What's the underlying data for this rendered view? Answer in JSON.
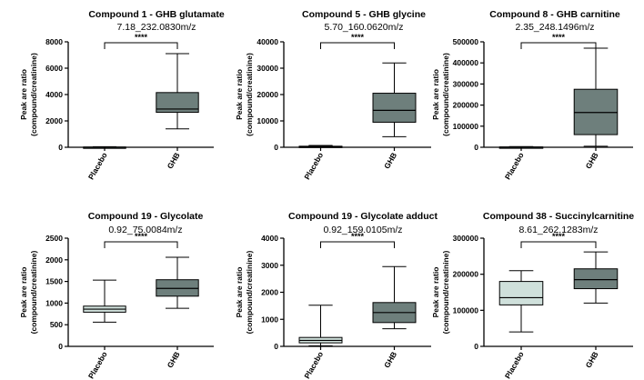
{
  "chart_data": [
    {
      "type": "box",
      "title": "Compound 1 - GHB glutamate",
      "subtitle": "7.18_232.0830m/z",
      "ylabel": "Peak are ratio\n(compound/creatinine)",
      "ylim": [
        0,
        8000
      ],
      "yticks": [
        "0",
        "2000",
        "4000",
        "6000",
        "8000"
      ],
      "categories": [
        "Placebo",
        "GHB"
      ],
      "boxes": [
        {
          "min": 0,
          "q1": 0,
          "median": 0,
          "q3": 20,
          "max": 40,
          "color": "#7fa39c"
        },
        {
          "min": 1400,
          "q1": 2650,
          "median": 2900,
          "q3": 4150,
          "max": 7100,
          "color": "#6e7f7c"
        }
      ],
      "significance": "****"
    },
    {
      "type": "box",
      "title": "Compound 5 - GHB glycine",
      "subtitle": "5.70_160.0620m/z",
      "ylabel": "Peak are ratio\n(compound/creatinine)",
      "ylim": [
        0,
        40000
      ],
      "yticks": [
        "0",
        "10000",
        "20000",
        "30000",
        "40000"
      ],
      "categories": [
        "Placebo",
        "GHB"
      ],
      "boxes": [
        {
          "min": 0,
          "q1": 100,
          "median": 200,
          "q3": 400,
          "max": 700,
          "color": "#7fa39c"
        },
        {
          "min": 4000,
          "q1": 9500,
          "median": 14000,
          "q3": 20500,
          "max": 32000,
          "color": "#6e7f7c"
        }
      ],
      "significance": "****"
    },
    {
      "type": "box",
      "title": "Compound 8 - GHB carnitine",
      "subtitle": "2.35_248.1496m/z",
      "ylabel": "Peak are ratio\n(compound/creatinine)",
      "ylim": [
        0,
        500000
      ],
      "yticks": [
        "0",
        "100000",
        "200000",
        "300000",
        "400000",
        "500000"
      ],
      "categories": [
        "Placebo",
        "GHB"
      ],
      "boxes": [
        {
          "min": 0,
          "q1": 0,
          "median": 500,
          "q3": 1500,
          "max": 3000,
          "color": "#7fa39c"
        },
        {
          "min": 5000,
          "q1": 60000,
          "median": 165000,
          "q3": 275000,
          "max": 470000,
          "color": "#6e7f7c"
        }
      ],
      "significance": "****"
    },
    {
      "type": "box",
      "title": "Compound 19 - Glycolate",
      "subtitle": "0.92_75.0084m/z",
      "ylabel": "Peak are ratio\n(compound/creatinine)",
      "ylim": [
        0,
        2500
      ],
      "yticks": [
        "0",
        "500",
        "1000",
        "1500",
        "2000",
        "2500"
      ],
      "categories": [
        "Placebo",
        "GHB"
      ],
      "boxes": [
        {
          "min": 560,
          "q1": 790,
          "median": 860,
          "q3": 930,
          "max": 1530,
          "color": "#cfe0db"
        },
        {
          "min": 880,
          "q1": 1160,
          "median": 1340,
          "q3": 1540,
          "max": 2060,
          "color": "#6e7f7c"
        }
      ],
      "significance": "****"
    },
    {
      "type": "box",
      "title": "Compound 19 - Glycolate adduct",
      "subtitle": "0.92_159.0105m/z",
      "ylabel": "Peak are ratio\n(compound/creatinine)",
      "ylim": [
        0,
        4000
      ],
      "yticks": [
        "0",
        "1000",
        "2000",
        "3000",
        "4000"
      ],
      "categories": [
        "Placebo",
        "GHB"
      ],
      "boxes": [
        {
          "min": 20,
          "q1": 130,
          "median": 220,
          "q3": 330,
          "max": 1520,
          "color": "#cfe0db"
        },
        {
          "min": 650,
          "q1": 880,
          "median": 1250,
          "q3": 1620,
          "max": 2950,
          "color": "#6e7f7c"
        }
      ],
      "significance": "****"
    },
    {
      "type": "box",
      "title": "Compound 38 - Succinylcarnitine",
      "subtitle": "8.61_262.1283m/z",
      "ylabel": "Peak are ratio\n(compound/creatinine)",
      "ylim": [
        0,
        300000
      ],
      "yticks": [
        "0",
        "100000",
        "200000",
        "300000"
      ],
      "categories": [
        "Placebo",
        "GHB"
      ],
      "boxes": [
        {
          "min": 40000,
          "q1": 115000,
          "median": 135000,
          "q3": 180000,
          "max": 210000,
          "color": "#cfe0db"
        },
        {
          "min": 120000,
          "q1": 160000,
          "median": 185000,
          "q3": 215000,
          "max": 262000,
          "color": "#6e7f7c"
        }
      ],
      "significance": "****"
    }
  ]
}
